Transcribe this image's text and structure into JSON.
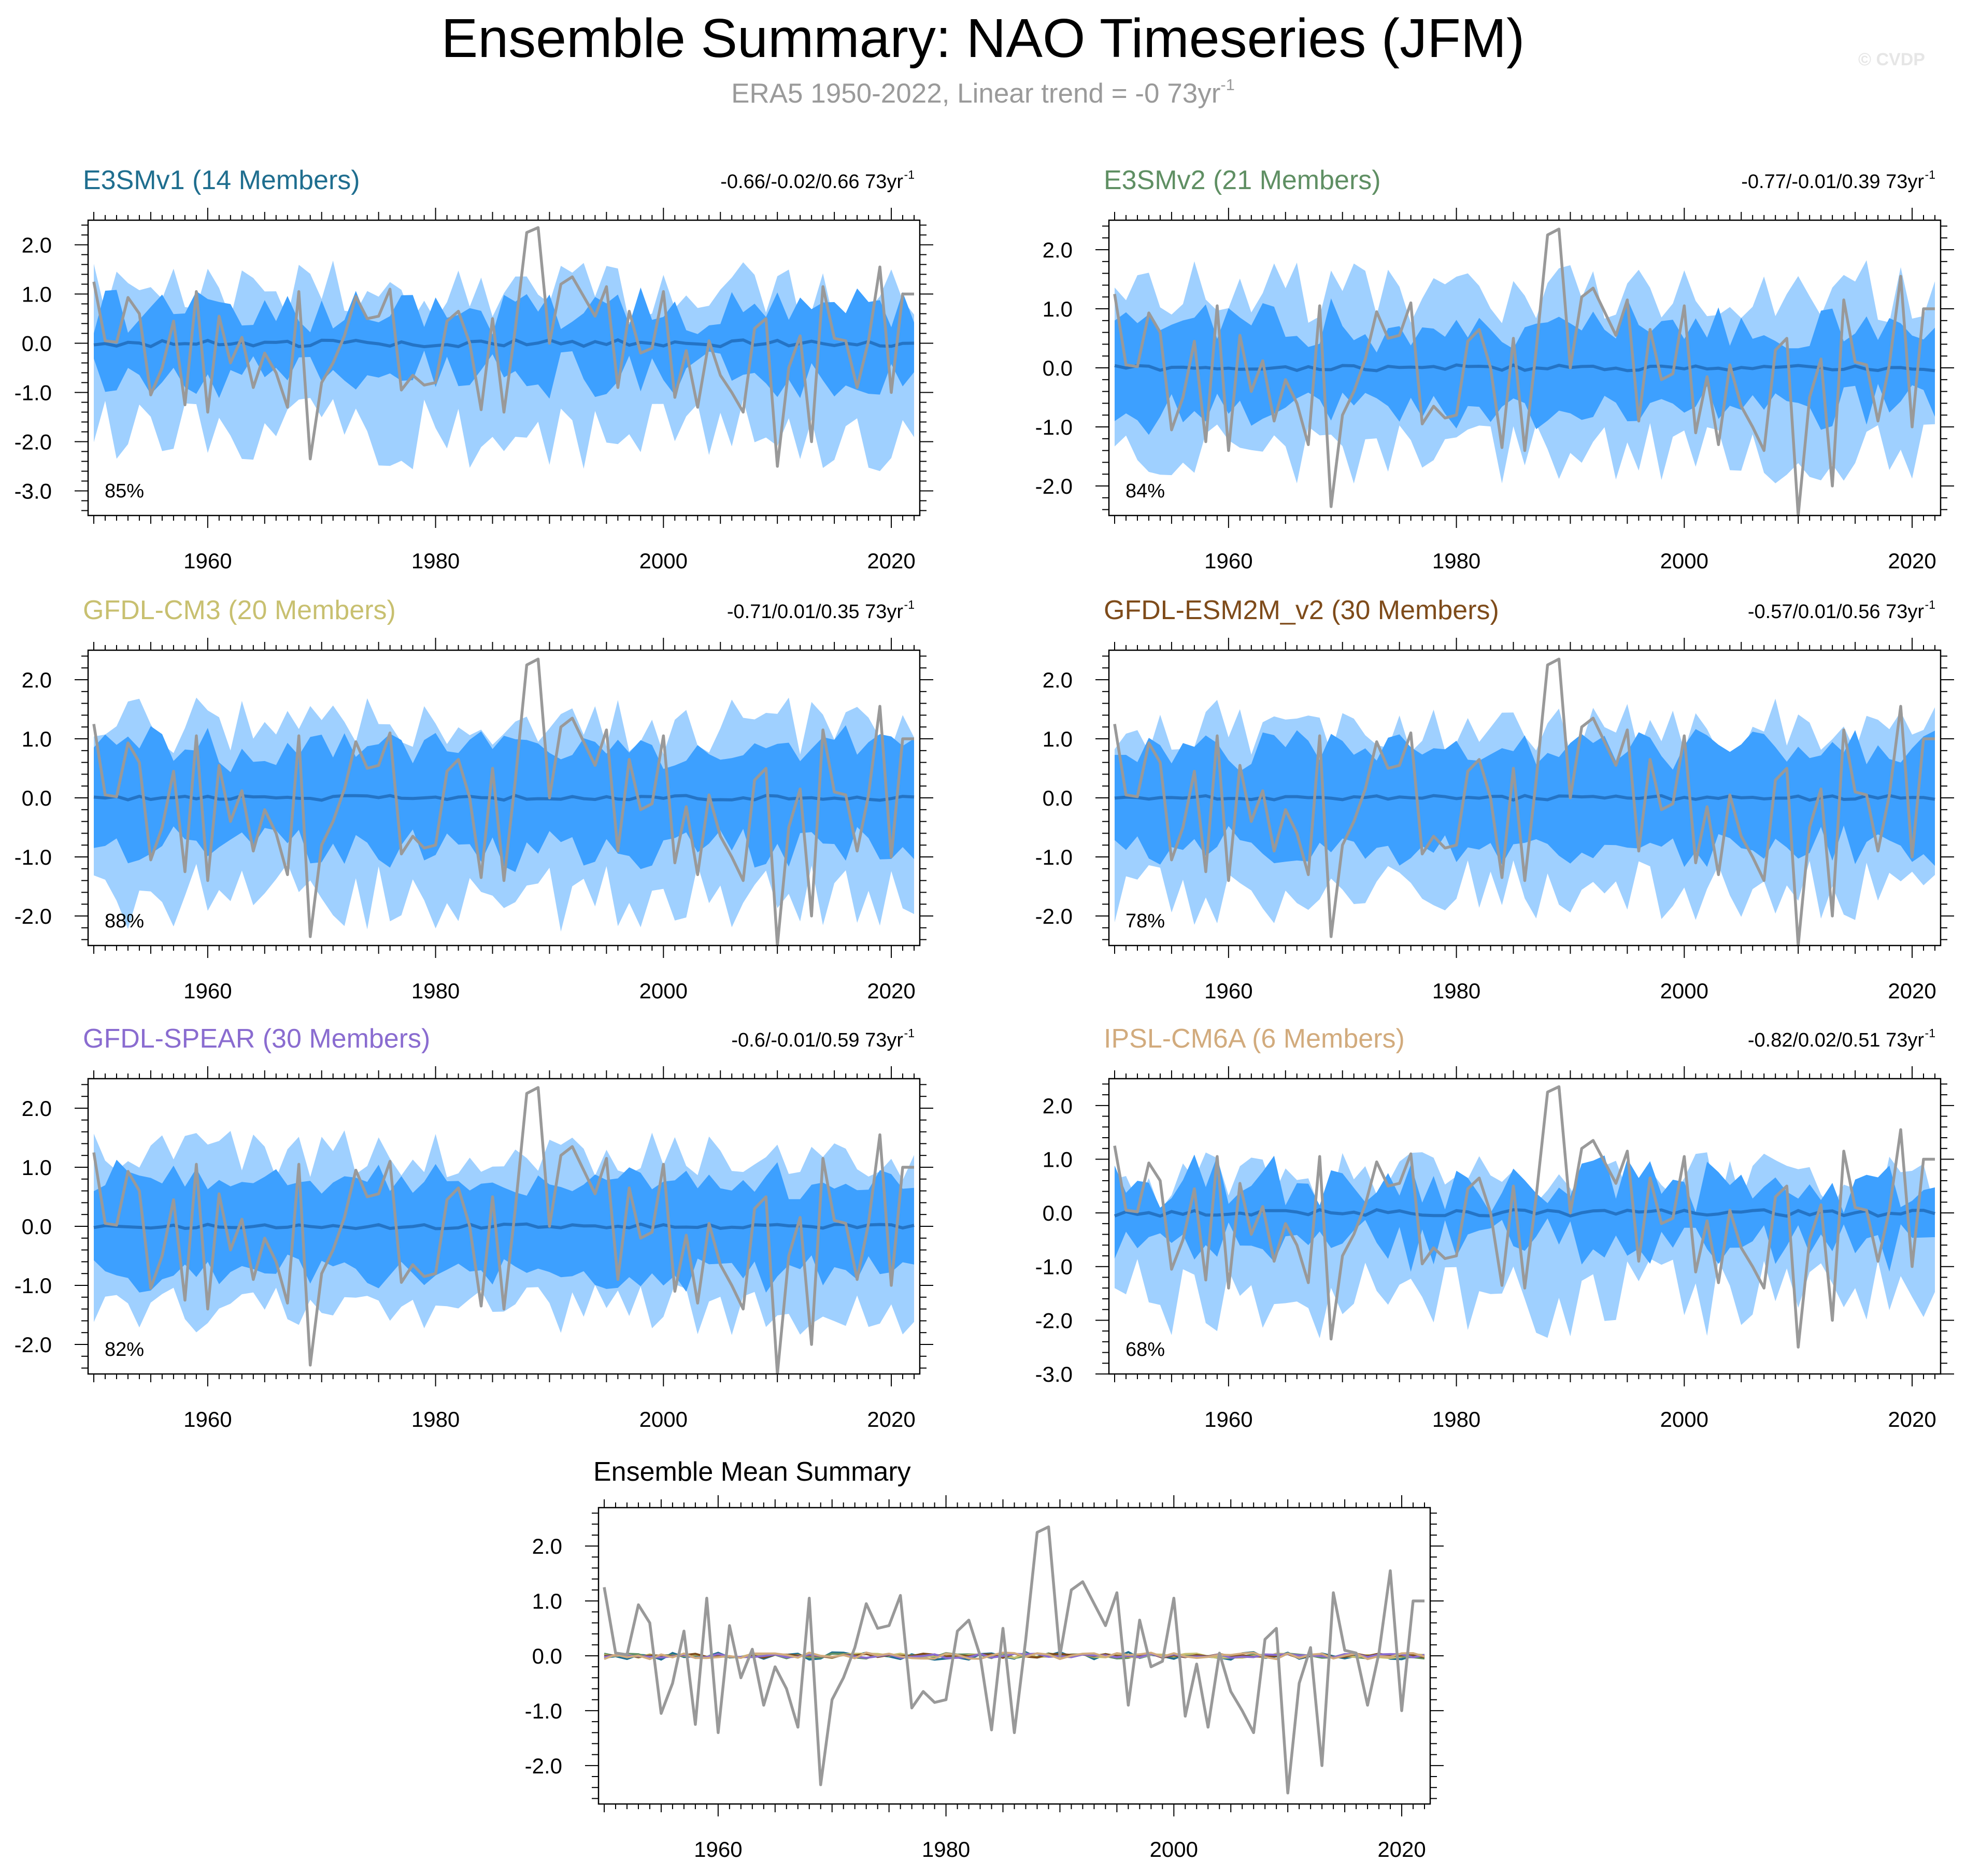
{
  "title": "Ensemble Summary: NAO Timeseries (JFM)",
  "subtitle": {
    "main": "ERA5 1950-2022, Linear trend = -0 73yr",
    "superscript": "-1"
  },
  "credit": "© CVDP",
  "colors": {
    "band_outer": "#9fd0ff",
    "band_inner": "#3da0ff",
    "ensemble_mean": "#2474c6",
    "observations": "#999999"
  },
  "chart_data": [
    {
      "type": "area",
      "panel": "top-left",
      "title": "E3SMv1 (14 Members)",
      "title_color": "#1f6e8f",
      "trend_text": "-0.66/-0.02/0.66 73yr",
      "trend_sup": "-1",
      "percent_label": "85%",
      "ylim": [
        -3.5,
        2.5
      ],
      "yticks": [
        -3,
        -2,
        -1,
        0,
        1,
        2
      ],
      "ytick_labels": [
        "-3.0",
        "-2.0",
        "-1.0",
        "0.0",
        "1.0",
        "2.0"
      ],
      "xlim": [
        1949.5,
        2022.5
      ],
      "xticks": [
        1960,
        1980,
        2000,
        2020
      ],
      "xtick_labels": [
        "1960",
        "1980",
        "2000",
        "2020"
      ],
      "series": [
        {
          "name": "outer spread",
          "lower_seed": 11,
          "lower_base": 1.85,
          "lower_amp": 0.75,
          "upper_seed": 12,
          "upper_base": 1.05,
          "upper_amp": 0.65
        },
        {
          "name": "inner spread",
          "seed": 13,
          "base": 0.62,
          "amp": 0.45
        },
        {
          "name": "ensemble mean",
          "seed": 14,
          "amp": 0.07
        },
        {
          "name": "ERA5",
          "observed": true
        }
      ]
    },
    {
      "type": "area",
      "panel": "top-right",
      "title": "E3SMv2 (21 Members)",
      "title_color": "#5f8f63",
      "trend_text": "-0.77/-0.01/0.39 73yr",
      "trend_sup": "-1",
      "percent_label": "84%",
      "ylim": [
        -2.5,
        2.5
      ],
      "yticks": [
        -2,
        -1,
        0,
        1,
        2
      ],
      "ytick_labels": [
        "-2.0",
        "-1.0",
        "0.0",
        "1.0",
        "2.0"
      ],
      "xlim": [
        1949.5,
        2022.5
      ],
      "xticks": [
        1960,
        1980,
        2000,
        2020
      ],
      "xtick_labels": [
        "1960",
        "1980",
        "2000",
        "2020"
      ],
      "series": [
        {
          "name": "outer spread",
          "lower_seed": 21,
          "lower_base": 1.45,
          "lower_amp": 0.55,
          "upper_seed": 22,
          "upper_base": 1.3,
          "upper_amp": 0.55
        },
        {
          "name": "inner spread",
          "seed": 23,
          "base": 0.7,
          "amp": 0.35
        },
        {
          "name": "ensemble mean",
          "seed": 24,
          "amp": 0.05
        },
        {
          "name": "ERA5",
          "observed": true
        }
      ]
    },
    {
      "type": "area",
      "panel": "middle-left",
      "title": "GFDL-CM3 (20 Members)",
      "title_color": "#c8c070",
      "trend_text": "-0.71/0.01/0.35 73yr",
      "trend_sup": "-1",
      "percent_label": "88%",
      "ylim": [
        -2.5,
        2.5
      ],
      "yticks": [
        -2,
        -1,
        0,
        1,
        2
      ],
      "ytick_labels": [
        "-2.0",
        "-1.0",
        "0.0",
        "1.0",
        "2.0"
      ],
      "xlim": [
        1949.5,
        2022.5
      ],
      "xticks": [
        1960,
        1980,
        2000,
        2020
      ],
      "xtick_labels": [
        "1960",
        "1980",
        "2000",
        "2020"
      ],
      "series": [
        {
          "name": "outer spread",
          "lower_seed": 31,
          "lower_base": 1.7,
          "lower_amp": 0.6,
          "upper_seed": 32,
          "upper_base": 1.2,
          "upper_amp": 0.5
        },
        {
          "name": "inner spread",
          "seed": 33,
          "base": 0.85,
          "amp": 0.3
        },
        {
          "name": "ensemble mean",
          "seed": 34,
          "amp": 0.04
        },
        {
          "name": "ERA5",
          "observed": true
        }
      ]
    },
    {
      "type": "area",
      "panel": "middle-right",
      "title": "GFDL-ESM2M_v2 (30 Members)",
      "title_color": "#7e4b1a",
      "trend_text": "-0.57/0.01/0.56 73yr",
      "trend_sup": "-1",
      "percent_label": "78%",
      "ylim": [
        -2.5,
        2.5
      ],
      "yticks": [
        -2,
        -1,
        0,
        1,
        2
      ],
      "ytick_labels": [
        "-2.0",
        "-1.0",
        "0.0",
        "1.0",
        "2.0"
      ],
      "xlim": [
        1949.5,
        2022.5
      ],
      "xticks": [
        1960,
        1980,
        2000,
        2020
      ],
      "xtick_labels": [
        "1960",
        "1980",
        "2000",
        "2020"
      ],
      "series": [
        {
          "name": "outer spread",
          "lower_seed": 41,
          "lower_base": 1.6,
          "lower_amp": 0.55,
          "upper_seed": 42,
          "upper_base": 1.2,
          "upper_amp": 0.5
        },
        {
          "name": "inner spread",
          "seed": 43,
          "base": 0.85,
          "amp": 0.3
        },
        {
          "name": "ensemble mean",
          "seed": 44,
          "amp": 0.04
        },
        {
          "name": "ERA5",
          "observed": true
        }
      ]
    },
    {
      "type": "area",
      "panel": "bottom-left",
      "title": "GFDL-SPEAR (30 Members)",
      "title_color": "#8a6cd0",
      "trend_text": "-0.6/-0.01/0.59 73yr",
      "trend_sup": "-1",
      "percent_label": "82%",
      "ylim": [
        -2.5,
        2.5
      ],
      "yticks": [
        -2,
        -1,
        0,
        1,
        2
      ],
      "ytick_labels": [
        "-2.0",
        "-1.0",
        "0.0",
        "1.0",
        "2.0"
      ],
      "xlim": [
        1949.5,
        2022.5
      ],
      "xticks": [
        1960,
        1980,
        2000,
        2020
      ],
      "xtick_labels": [
        "1960",
        "1980",
        "2000",
        "2020"
      ],
      "series": [
        {
          "name": "outer spread",
          "lower_seed": 51,
          "lower_base": 1.4,
          "lower_amp": 0.45,
          "upper_seed": 52,
          "upper_base": 1.2,
          "upper_amp": 0.45
        },
        {
          "name": "inner spread",
          "seed": 53,
          "base": 0.8,
          "amp": 0.25
        },
        {
          "name": "ensemble mean",
          "seed": 54,
          "amp": 0.04
        },
        {
          "name": "ERA5",
          "observed": true
        }
      ]
    },
    {
      "type": "area",
      "panel": "bottom-right",
      "title": "IPSL-CM6A (6 Members)",
      "title_color": "#d2ab7d",
      "trend_text": "-0.82/0.02/0.51 73yr",
      "trend_sup": "-1",
      "percent_label": "68%",
      "ylim": [
        -3.0,
        2.5
      ],
      "yticks": [
        -3,
        -2,
        -1,
        0,
        1,
        2
      ],
      "ytick_labels": [
        "-3.0",
        "-2.0",
        "-1.0",
        "0.0",
        "1.0",
        "2.0"
      ],
      "xlim": [
        1949.5,
        2022.5
      ],
      "xticks": [
        1960,
        1980,
        2000,
        2020
      ],
      "xtick_labels": [
        "1960",
        "1980",
        "2000",
        "2020"
      ],
      "series": [
        {
          "name": "outer spread",
          "lower_seed": 61,
          "lower_base": 1.6,
          "lower_amp": 0.75,
          "upper_seed": 62,
          "upper_base": 0.6,
          "upper_amp": 0.55
        },
        {
          "name": "inner spread",
          "seed": 63,
          "base": 0.55,
          "amp": 0.45
        },
        {
          "name": "ensemble mean",
          "seed": 64,
          "amp": 0.06
        },
        {
          "name": "ERA5",
          "observed": true
        }
      ]
    },
    {
      "type": "line",
      "panel": "bottom-center",
      "title": "Ensemble Mean Summary",
      "ylim": [
        -2.7,
        2.7
      ],
      "yticks": [
        -2,
        -1,
        0,
        1,
        2
      ],
      "ytick_labels": [
        "-2.0",
        "-1.0",
        "0.0",
        "1.0",
        "2.0"
      ],
      "xlim": [
        1949.5,
        2022.5
      ],
      "xticks": [
        1960,
        1980,
        2000,
        2020
      ],
      "xtick_labels": [
        "1960",
        "1980",
        "2000",
        "2020"
      ],
      "series": [
        {
          "name": "E3SMv1",
          "color": "#1f6e8f",
          "seed": 14,
          "amp": 0.07
        },
        {
          "name": "E3SMv2",
          "color": "#5f8f63",
          "seed": 24,
          "amp": 0.05
        },
        {
          "name": "GFDL-CM3",
          "color": "#c8c070",
          "seed": 34,
          "amp": 0.04
        },
        {
          "name": "GFDL-ESM2M_v2",
          "color": "#7e4b1a",
          "seed": 44,
          "amp": 0.04
        },
        {
          "name": "GFDL-SPEAR",
          "color": "#8a6cd0",
          "seed": 54,
          "amp": 0.04
        },
        {
          "name": "IPSL-CM6A",
          "color": "#d2ab7d",
          "seed": 64,
          "amp": 0.06
        },
        {
          "name": "ERA5",
          "observed": true
        }
      ]
    }
  ],
  "observations": {
    "name": "ERA5",
    "years": [
      1950,
      1951,
      1952,
      1953,
      1954,
      1955,
      1956,
      1957,
      1958,
      1959,
      1960,
      1961,
      1962,
      1963,
      1964,
      1965,
      1966,
      1967,
      1968,
      1969,
      1970,
      1971,
      1972,
      1973,
      1974,
      1975,
      1976,
      1977,
      1978,
      1979,
      1980,
      1981,
      1982,
      1983,
      1984,
      1985,
      1986,
      1987,
      1988,
      1989,
      1990,
      1991,
      1992,
      1993,
      1994,
      1995,
      1996,
      1997,
      1998,
      1999,
      2000,
      2001,
      2002,
      2003,
      2004,
      2005,
      2006,
      2007,
      2008,
      2009,
      2010,
      2011,
      2012,
      2013,
      2014,
      2015,
      2016,
      2017,
      2018,
      2019,
      2020,
      2021,
      2022
    ],
    "values": [
      1.25,
      0.05,
      0.02,
      0.93,
      0.6,
      -1.05,
      -0.5,
      0.45,
      -1.25,
      1.05,
      -1.4,
      0.55,
      -0.4,
      0.12,
      -0.9,
      -0.2,
      -0.6,
      -1.3,
      1.05,
      -2.35,
      -0.8,
      -0.4,
      0.15,
      0.95,
      0.5,
      0.55,
      1.1,
      -0.95,
      -0.65,
      -0.85,
      -0.8,
      0.45,
      0.65,
      0.0,
      -1.35,
      0.5,
      -1.4,
      0.3,
      2.25,
      2.35,
      0.0,
      1.2,
      1.35,
      0.95,
      0.55,
      1.15,
      -0.9,
      0.65,
      -0.2,
      -0.1,
      1.05,
      -1.1,
      -0.15,
      -1.3,
      0.05,
      -0.65,
      -1.0,
      -1.4,
      0.3,
      0.5,
      -2.5,
      -0.5,
      0.15,
      -2.0,
      1.15,
      0.1,
      0.05,
      -0.9,
      0.05,
      1.55,
      -1.0,
      1.0,
      1.0
    ]
  }
}
